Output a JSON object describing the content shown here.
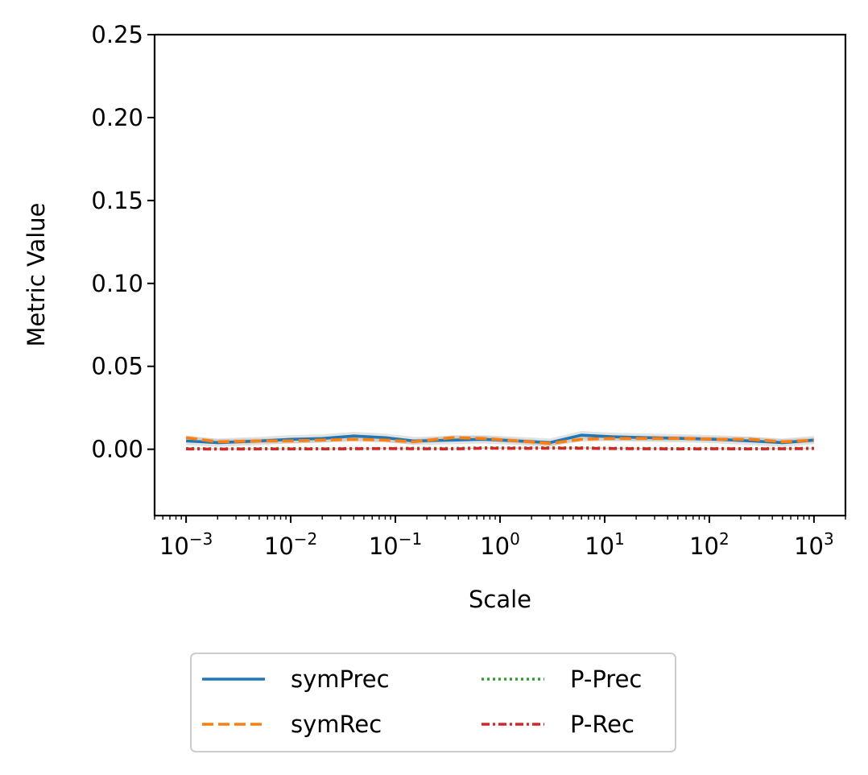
{
  "chart_data": {
    "type": "line",
    "title": "",
    "xlabel": "Scale",
    "ylabel": "Metric Value",
    "xscale": "log",
    "xlim": [
      0.0005,
      2000
    ],
    "ylim": [
      -0.04,
      0.25
    ],
    "grid": false,
    "legend_position": "below-center",
    "legend_columns": 2,
    "x_ticks": [
      {
        "value": 0.001,
        "base": "10",
        "exp": "−3"
      },
      {
        "value": 0.01,
        "base": "10",
        "exp": "−2"
      },
      {
        "value": 0.1,
        "base": "10",
        "exp": "−1"
      },
      {
        "value": 1,
        "base": "10",
        "exp": "0"
      },
      {
        "value": 10,
        "base": "10",
        "exp": "1"
      },
      {
        "value": 100,
        "base": "10",
        "exp": "2"
      },
      {
        "value": 1000,
        "base": "10",
        "exp": "3"
      }
    ],
    "y_ticks": [
      {
        "value": 0.0,
        "label": "0.00"
      },
      {
        "value": 0.05,
        "label": "0.05"
      },
      {
        "value": 0.1,
        "label": "0.10"
      },
      {
        "value": 0.15,
        "label": "0.15"
      },
      {
        "value": 0.2,
        "label": "0.20"
      },
      {
        "value": 0.25,
        "label": "0.25"
      }
    ],
    "x": [
      0.001,
      0.002,
      0.005,
      0.01,
      0.02,
      0.04,
      0.08,
      0.15,
      0.35,
      0.7,
      1.5,
      3,
      6,
      12,
      25,
      60,
      120,
      250,
      500,
      1000
    ],
    "series": [
      {
        "name": "symPrec",
        "color": "#1f77b4",
        "dash": "solid",
        "values": [
          0.005,
          0.004,
          0.005,
          0.006,
          0.0065,
          0.008,
          0.007,
          0.005,
          0.0055,
          0.006,
          0.005,
          0.004,
          0.0085,
          0.0075,
          0.007,
          0.0065,
          0.006,
          0.005,
          0.004,
          0.0055
        ],
        "band": 0.0025
      },
      {
        "name": "symRec",
        "color": "#ff7f0e",
        "dash": "dashed",
        "values": [
          0.007,
          0.0045,
          0.005,
          0.005,
          0.0055,
          0.006,
          0.0055,
          0.0045,
          0.007,
          0.0065,
          0.005,
          0.0035,
          0.006,
          0.0065,
          0.0065,
          0.0065,
          0.006,
          0.006,
          0.0045,
          0.0055
        ],
        "band": 0.0015
      },
      {
        "name": "P-Prec",
        "color": "#2ca02c",
        "dash": "dotted",
        "values": [
          0.0005,
          0.0003,
          0.0004,
          0.0005,
          0.0004,
          0.0005,
          0.0005,
          0.0006,
          0.0005,
          0.0009,
          0.0008,
          0.0009,
          0.0009,
          0.0006,
          0.0005,
          0.0004,
          0.0005,
          0.0004,
          0.0005,
          0.0006
        ],
        "band": 0.0004
      },
      {
        "name": "P-Rec",
        "color": "#d62728",
        "dash": "dashdot",
        "values": [
          0.0002,
          0.0001,
          0.0002,
          0.0002,
          0.0002,
          0.0003,
          0.0004,
          0.0003,
          0.0002,
          0.0006,
          0.0005,
          0.0006,
          0.0006,
          0.0004,
          0.0003,
          0.0002,
          0.0003,
          0.0002,
          0.0003,
          0.0004
        ],
        "band": 0.0003
      }
    ]
  }
}
